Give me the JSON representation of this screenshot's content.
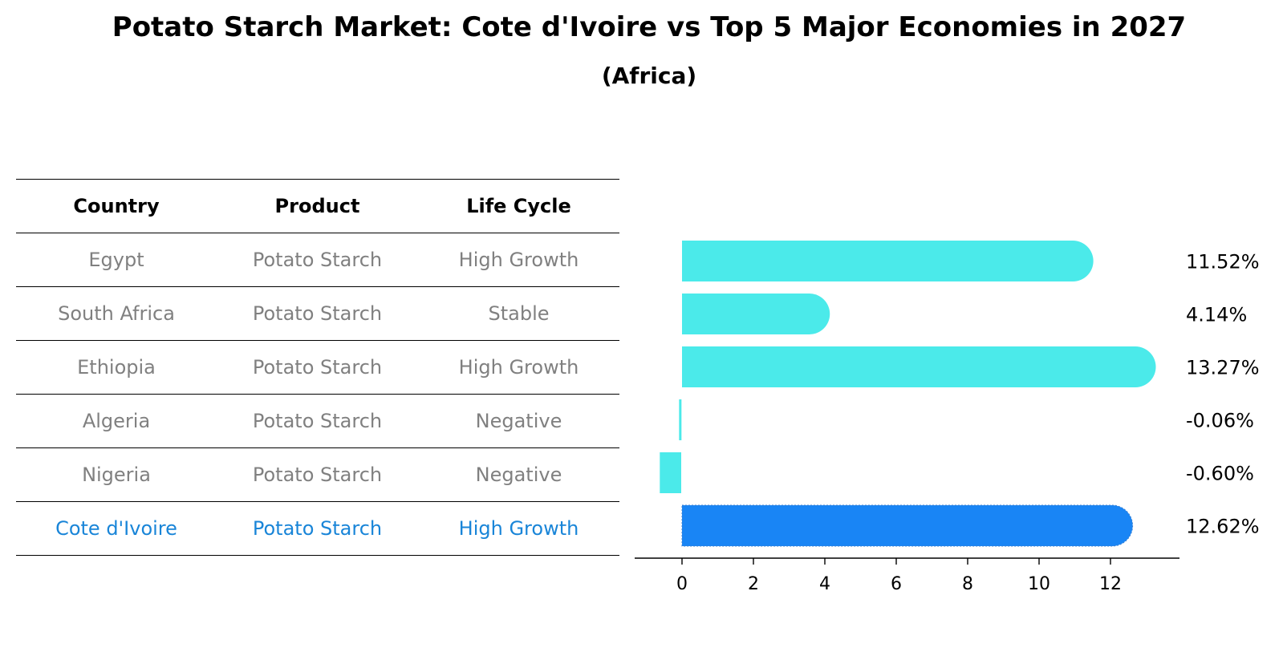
{
  "title": "Potato Starch Market: Cote d'Ivoire vs Top 5 Major Economies in 2027",
  "subtitle": "(Africa)",
  "table": {
    "headers": [
      "Country",
      "Product",
      "Life Cycle"
    ],
    "rows": [
      {
        "country": "Egypt",
        "product": "Potato Starch",
        "life_cycle": "High Growth"
      },
      {
        "country": "South Africa",
        "product": "Potato Starch",
        "life_cycle": "Stable"
      },
      {
        "country": "Ethiopia",
        "product": "Potato Starch",
        "life_cycle": "High Growth"
      },
      {
        "country": "Algeria",
        "product": "Potato Starch",
        "life_cycle": "Negative"
      },
      {
        "country": "Nigeria",
        "product": "Potato Starch",
        "life_cycle": "Negative"
      },
      {
        "country": "Cote d'Ivoire",
        "product": "Potato Starch",
        "life_cycle": "High Growth"
      }
    ]
  },
  "chart_data": {
    "type": "bar",
    "orientation": "horizontal",
    "categories": [
      "Egypt",
      "South Africa",
      "Ethiopia",
      "Algeria",
      "Nigeria",
      "Cote d'Ivoire"
    ],
    "values": [
      11.52,
      4.14,
      13.27,
      -0.06,
      -0.6,
      12.62
    ],
    "value_labels": [
      "11.52%",
      "4.14%",
      "13.27%",
      "-0.06%",
      "-0.60%",
      "12.62%"
    ],
    "highlight": "Cote d'Ivoire",
    "xlim": [
      -1.3,
      14
    ],
    "xticks": [
      0,
      2,
      4,
      6,
      8,
      10,
      12
    ],
    "xlabel": "",
    "ylabel": "",
    "colors": {
      "bar": "#4beaea",
      "highlight": "#1985f5",
      "highlight_text": "#1985d8"
    }
  }
}
